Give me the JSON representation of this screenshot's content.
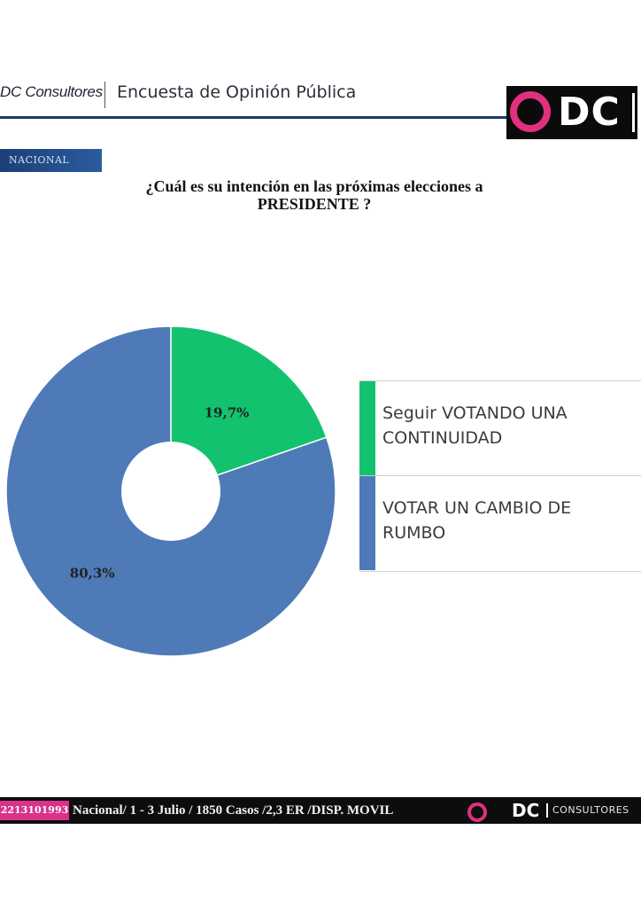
{
  "header": {
    "brand": "DC Consultores",
    "title": "Encuesta de Opinión Pública",
    "logo_text": "DC"
  },
  "badge": "NACIONAL",
  "question": "¿Cuál es su intención en  las próximas elecciones a PRESIDENTE ?",
  "chart_data": {
    "type": "pie",
    "categories": [
      "Seguir VOTANDO UNA CONTINUIDAD",
      "VOTAR UN CAMBIO DE RUMBO"
    ],
    "values": [
      19.7,
      80.3
    ],
    "labels": [
      "19,7%",
      "80,3%"
    ],
    "colors": [
      "#13c26f",
      "#4f7ab8"
    ],
    "legend_position": "right"
  },
  "footer": {
    "phone": "2213101993",
    "text": "Nacional/ 1 - 3 Julio / 1850 Casos  /2,3   ER /DISP. MOVIL",
    "logo_text": "DC",
    "brand_suffix": "CONSULTORES"
  }
}
